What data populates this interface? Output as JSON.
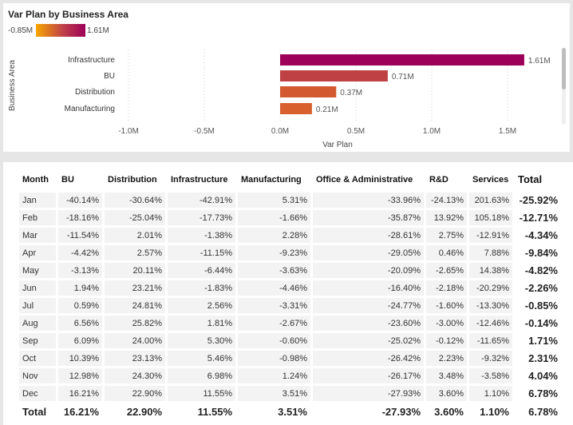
{
  "chart": {
    "title": "Var Plan by Business Area",
    "legend_min": "-0.85M",
    "legend_max": "1.61M",
    "gradient_colors": [
      "#f7a600",
      "#9c0059"
    ]
  },
  "chart_data": {
    "type": "bar",
    "orientation": "horizontal",
    "title": "Var Plan by Business Area",
    "xlabel": "Var Plan",
    "ylabel": "Business Area",
    "categories": [
      "Infrastructure",
      "BU",
      "Distribution",
      "Manufacturing"
    ],
    "values": [
      1.61,
      0.71,
      0.37,
      0.21
    ],
    "data_labels": [
      "1.61M",
      "0.71M",
      "0.37M",
      "0.21M"
    ],
    "colors": [
      "#9c0059",
      "#c04144",
      "#d35a30",
      "#d8602c"
    ],
    "unit": "M",
    "xlim": [
      -1.0,
      1.7
    ],
    "x_ticks": [
      -1.0,
      -0.5,
      0.0,
      0.5,
      1.0,
      1.5
    ],
    "x_tick_labels": [
      "-1.0M",
      "-0.5M",
      "0.0M",
      "0.5M",
      "1.0M",
      "1.5M"
    ],
    "grid": "vertical dotted"
  },
  "table": {
    "headers": [
      "Month",
      "BU",
      "Distribution",
      "Infrastructure",
      "Manufacturing",
      "Office & Administrative",
      "R&D",
      "Services",
      "Total"
    ],
    "rows": [
      [
        "Jan",
        "-40.14%",
        "-30.64%",
        "-42.91%",
        "5.31%",
        "-33.96%",
        "-24.13%",
        "201.63%",
        "-25.92%"
      ],
      [
        "Feb",
        "-18.16%",
        "-25.04%",
        "-17.73%",
        "-1.66%",
        "-35.87%",
        "13.92%",
        "105.18%",
        "-12.71%"
      ],
      [
        "Mar",
        "-11.54%",
        "2.01%",
        "-1.38%",
        "2.28%",
        "-28.61%",
        "2.75%",
        "-12.91%",
        "-4.34%"
      ],
      [
        "Apr",
        "-4.42%",
        "2.57%",
        "-11.15%",
        "-9.23%",
        "-29.05%",
        "0.46%",
        "7.88%",
        "-9.84%"
      ],
      [
        "May",
        "-3.13%",
        "20.11%",
        "-6.44%",
        "-3.63%",
        "-20.09%",
        "-2.65%",
        "14.38%",
        "-4.82%"
      ],
      [
        "Jun",
        "1.94%",
        "23.21%",
        "-1.83%",
        "-4.46%",
        "-16.40%",
        "-2.18%",
        "-20.29%",
        "-2.26%"
      ],
      [
        "Jul",
        "0.59%",
        "24.81%",
        "2.56%",
        "-3.31%",
        "-24.77%",
        "-1.60%",
        "-13.30%",
        "-0.85%"
      ],
      [
        "Aug",
        "6.56%",
        "25.82%",
        "1.81%",
        "-2.67%",
        "-23.60%",
        "-3.00%",
        "-12.46%",
        "-0.14%"
      ],
      [
        "Sep",
        "6.09%",
        "24.00%",
        "5.30%",
        "-0.60%",
        "-25.02%",
        "-0.12%",
        "-11.65%",
        "1.71%"
      ],
      [
        "Oct",
        "10.39%",
        "23.13%",
        "5.46%",
        "-0.98%",
        "-26.42%",
        "2.23%",
        "-9.32%",
        "2.31%"
      ],
      [
        "Nov",
        "12.98%",
        "24.30%",
        "6.98%",
        "1.24%",
        "-26.17%",
        "3.48%",
        "-3.58%",
        "4.04%"
      ],
      [
        "Dec",
        "16.21%",
        "22.90%",
        "11.55%",
        "3.51%",
        "-27.93%",
        "3.60%",
        "1.10%",
        "6.78%"
      ]
    ],
    "total_row": [
      "Total",
      "16.21%",
      "22.90%",
      "11.55%",
      "3.51%",
      "-27.93%",
      "3.60%",
      "1.10%",
      "6.78%"
    ]
  }
}
